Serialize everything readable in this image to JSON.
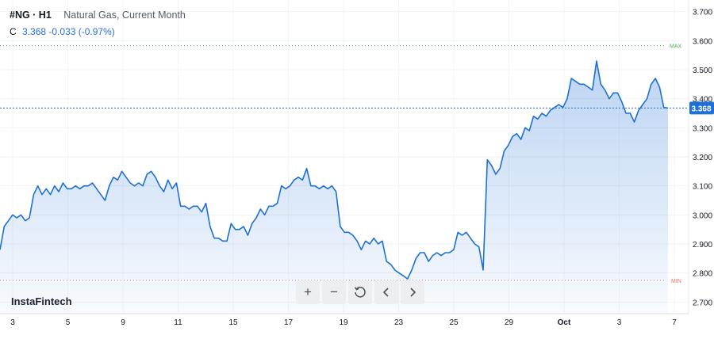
{
  "header": {
    "symbol": "#NG · H1",
    "description": "Natural Gas, Current Month",
    "close_label": "C",
    "close_value": "3.368",
    "change": "-0.033 (-0.97%)"
  },
  "brand": "InstaFintech",
  "toolbar": {
    "buttons": [
      "plus-icon",
      "minus-icon",
      "reset-icon",
      "chevron-left-icon",
      "chevron-right-icon"
    ],
    "plus_label": "+",
    "minus_label": "−"
  },
  "colors": {
    "line": "#1e6fd6",
    "max_line": "#4caf50",
    "min_line": "#e57373",
    "price_badge": "#1e6fd6"
  },
  "chart_data": {
    "type": "area",
    "ylim": [
      2.66,
      3.74
    ],
    "y_ticks": [
      "2.700",
      "2.800",
      "2.900",
      "3.000",
      "3.100",
      "3.200",
      "3.300",
      "3.400",
      "3.500",
      "3.600",
      "3.700"
    ],
    "x_ticks": [
      "3",
      "5",
      "9",
      "11",
      "15",
      "17",
      "19",
      "23",
      "25",
      "29",
      "Oct",
      "3",
      "7"
    ],
    "max_label": "MAX",
    "max_value": 3.583,
    "min_label": "MIN",
    "min_value": 2.775,
    "last_price": 3.368,
    "last_price_label": "3.368",
    "series": [
      {
        "values": [
          2.88,
          2.96,
          2.98,
          3.0,
          2.99,
          3.0,
          2.98,
          2.99,
          3.07,
          3.1,
          3.07,
          3.09,
          3.07,
          3.1,
          3.08,
          3.11,
          3.09,
          3.09,
          3.1,
          3.09,
          3.1,
          3.1,
          3.11,
          3.09,
          3.07,
          3.05,
          3.1,
          3.13,
          3.12,
          3.15,
          3.13,
          3.11,
          3.1,
          3.11,
          3.1,
          3.14,
          3.15,
          3.13,
          3.1,
          3.08,
          3.12,
          3.09,
          3.11,
          3.03,
          3.03,
          3.02,
          3.03,
          3.03,
          3.01,
          3.04,
          2.96,
          2.92,
          2.92,
          2.91,
          2.91,
          2.97,
          2.95,
          2.95,
          2.96,
          2.93,
          2.97,
          2.99,
          3.02,
          3.0,
          3.03,
          3.03,
          3.04,
          3.1,
          3.09,
          3.1,
          3.12,
          3.13,
          3.12,
          3.16,
          3.1,
          3.1,
          3.09,
          3.1,
          3.09,
          3.1,
          3.08,
          2.96,
          2.94,
          2.94,
          2.93,
          2.91,
          2.88,
          2.91,
          2.9,
          2.92,
          2.9,
          2.91,
          2.84,
          2.83,
          2.81,
          2.8,
          2.79,
          2.78,
          2.81,
          2.85,
          2.87,
          2.87,
          2.84,
          2.86,
          2.87,
          2.86,
          2.87,
          2.87,
          2.88,
          2.94,
          2.93,
          2.94,
          2.92,
          2.9,
          2.89,
          2.81,
          3.19,
          3.17,
          3.14,
          3.16,
          3.22,
          3.24,
          3.27,
          3.28,
          3.26,
          3.3,
          3.29,
          3.34,
          3.33,
          3.35,
          3.34,
          3.36,
          3.37,
          3.38,
          3.37,
          3.4,
          3.47,
          3.46,
          3.45,
          3.45,
          3.44,
          3.43,
          3.53,
          3.45,
          3.43,
          3.4,
          3.42,
          3.42,
          3.39,
          3.35,
          3.35,
          3.32,
          3.36,
          3.38,
          3.4,
          3.45,
          3.47,
          3.44,
          3.37,
          3.368
        ]
      }
    ]
  }
}
